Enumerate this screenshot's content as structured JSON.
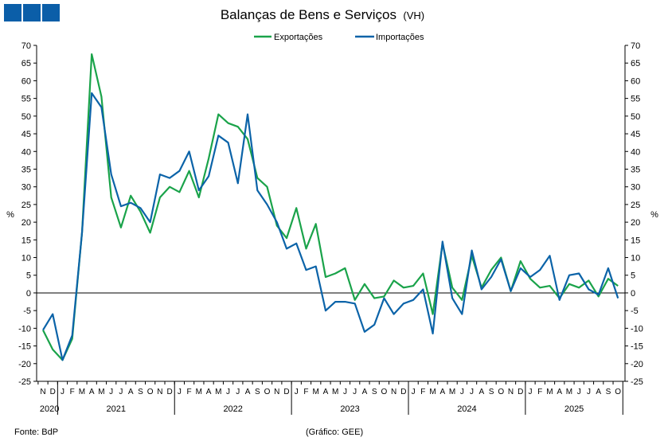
{
  "title": "Balanças de Bens e Serviços",
  "title_suffix": "(VH)",
  "footer": {
    "source": "Fonte: BdP",
    "credit": "(Gráfico: GEE)"
  },
  "colors": {
    "logo": "#0b5ea8",
    "exports": "#1aa34a",
    "imports": "#0b63a8",
    "axis": "#000000"
  },
  "chart_data": {
    "type": "line",
    "ylabel": "%",
    "ylim": [
      -25,
      70
    ],
    "yticks": [
      -25,
      -20,
      -15,
      -10,
      -5,
      0,
      5,
      10,
      15,
      20,
      25,
      30,
      35,
      40,
      45,
      50,
      55,
      60,
      65,
      70
    ],
    "legend_position": "top-center",
    "grid": false,
    "x_months": [
      "N",
      "D",
      "J",
      "F",
      "M",
      "A",
      "M",
      "J",
      "J",
      "A",
      "S",
      "O",
      "N",
      "D",
      "J",
      "F",
      "M",
      "A",
      "M",
      "J",
      "J",
      "A",
      "S",
      "O",
      "N",
      "D",
      "J",
      "F",
      "M",
      "A",
      "M",
      "J",
      "J",
      "A",
      "S",
      "O",
      "N",
      "D",
      "J",
      "F",
      "M",
      "A",
      "M",
      "J",
      "J",
      "A",
      "S",
      "O",
      "N",
      "D",
      "J",
      "F",
      "M",
      "A",
      "M",
      "J",
      "J",
      "A",
      "S",
      "O"
    ],
    "x_years": [
      {
        "label": "2020",
        "start": 0,
        "end": 1
      },
      {
        "label": "2021",
        "start": 2,
        "end": 13
      },
      {
        "label": "2022",
        "start": 14,
        "end": 25
      },
      {
        "label": "2023",
        "start": 26,
        "end": 37
      },
      {
        "label": "2024",
        "start": 38,
        "end": 49
      },
      {
        "label": "2025",
        "start": 50,
        "end": 59
      }
    ],
    "series": [
      {
        "name": "Exportações",
        "color": "#1aa34a",
        "values": [
          -10.5,
          -16,
          -19,
          -13,
          17,
          67.5,
          55.5,
          27,
          18.5,
          27.5,
          23,
          17,
          27,
          30,
          28.5,
          34.5,
          27,
          38,
          50.5,
          48,
          47,
          43.5,
          32.5,
          30,
          19,
          15.5,
          24,
          12.5,
          19.5,
          4.5,
          5.5,
          7,
          -2,
          2.5,
          -1.5,
          -1,
          3.5,
          1.5,
          2,
          5.5,
          -6,
          14,
          1.5,
          -2,
          10.5,
          1.5,
          6.5,
          10,
          0.5,
          9,
          4,
          1.5,
          2,
          -1.5,
          2.5,
          1.5,
          3.5,
          -1,
          4,
          2
        ]
      },
      {
        "name": "Importações",
        "color": "#0b63a8",
        "values": [
          -10.5,
          -6,
          -19,
          -12,
          17,
          56.5,
          52.5,
          33.5,
          24.5,
          25.5,
          24,
          20,
          33.5,
          32.5,
          34.5,
          40,
          29,
          33,
          44.5,
          42.5,
          31,
          50.5,
          29,
          25,
          20,
          12.5,
          14,
          6.5,
          7.5,
          -5,
          -2.5,
          -2.5,
          -3,
          -11,
          -9,
          -1.5,
          -6,
          -3,
          -2,
          1,
          -11.5,
          14.5,
          -1.5,
          -6,
          12,
          1,
          4.5,
          9.5,
          0.5,
          7,
          4.5,
          6.5,
          10.5,
          -2,
          5,
          5.5,
          1,
          -0.5,
          7,
          -1.5
        ]
      }
    ]
  }
}
